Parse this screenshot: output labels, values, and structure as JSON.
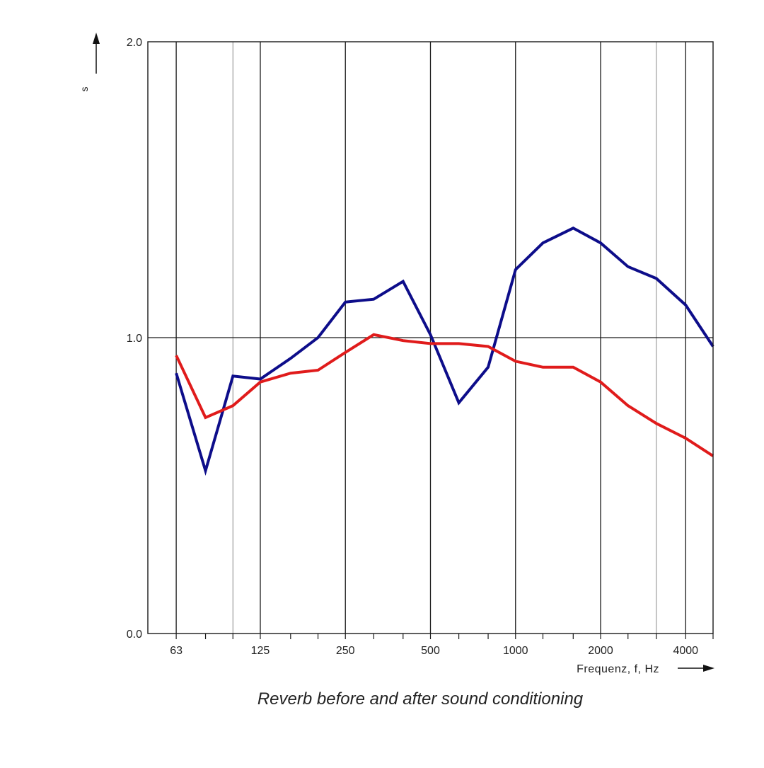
{
  "chart_data": {
    "type": "line",
    "title": "",
    "caption": "Reverb before and after sound conditioning",
    "xlabel": "Frequenz, f, Hz",
    "ylabel": "s",
    "x_scale": "log",
    "x_ticks": [
      {
        "value": 63,
        "label": "63"
      },
      {
        "value": 125,
        "label": "125"
      },
      {
        "value": 250,
        "label": "250"
      },
      {
        "value": 500,
        "label": "500"
      },
      {
        "value": 1000,
        "label": "1000"
      },
      {
        "value": 2000,
        "label": "2000"
      },
      {
        "value": 4000,
        "label": "4000"
      }
    ],
    "y_ticks": [
      {
        "value": 0.0,
        "label": "0.0"
      },
      {
        "value": 1.0,
        "label": "1.0"
      },
      {
        "value": 2.0,
        "label": "2.0"
      }
    ],
    "ylim": [
      0,
      2.0
    ],
    "xlim": [
      50,
      5000
    ],
    "grid": true,
    "x": [
      63,
      80,
      100,
      125,
      160,
      200,
      250,
      315,
      400,
      500,
      630,
      800,
      1000,
      1250,
      1600,
      2000,
      2500,
      3150,
      4000,
      5000
    ],
    "series": [
      {
        "color": "#0d0d8a",
        "values": [
          0.88,
          0.55,
          0.87,
          0.86,
          0.93,
          1.0,
          1.12,
          1.13,
          1.19,
          1.01,
          0.78,
          0.9,
          1.23,
          1.32,
          1.37,
          1.32,
          1.24,
          1.2,
          1.11,
          0.97
        ]
      },
      {
        "color": "#e01b1b",
        "values": [
          0.94,
          0.73,
          0.77,
          0.85,
          0.88,
          0.89,
          0.95,
          1.01,
          0.99,
          0.98,
          0.98,
          0.97,
          0.92,
          0.9,
          0.9,
          0.85,
          0.77,
          0.71,
          0.66,
          0.6
        ]
      }
    ]
  }
}
